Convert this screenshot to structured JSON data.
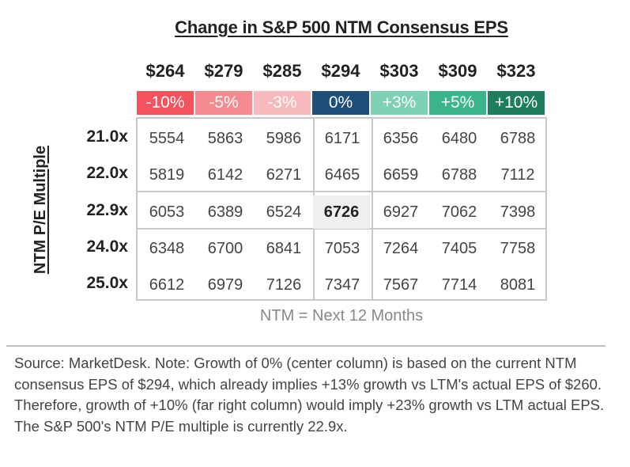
{
  "chart_data": {
    "type": "table",
    "title": "Change in S&P 500 NTM Consensus EPS",
    "ylabel": "NTM P/E Multiple",
    "eps_values": [
      "$264",
      "$279",
      "$285",
      "$294",
      "$303",
      "$309",
      "$323"
    ],
    "growth_labels": [
      "-10%",
      "-5%",
      "-3%",
      "0%",
      "+3%",
      "+5%",
      "+10%"
    ],
    "growth_colors": [
      "#f4525d",
      "#f58b91",
      "#f8b9bc",
      "#1f4e79",
      "#7fd1b4",
      "#3bb58c",
      "#1e7d5c"
    ],
    "pe_multiples": [
      "21.0x",
      "22.0x",
      "22.9x",
      "24.0x",
      "25.0x"
    ],
    "values": [
      [
        5554,
        5863,
        5986,
        6171,
        6356,
        6480,
        6788
      ],
      [
        5819,
        6142,
        6271,
        6465,
        6659,
        6788,
        7112
      ],
      [
        6053,
        6389,
        6524,
        6726,
        6927,
        7062,
        7398
      ],
      [
        6348,
        6700,
        6841,
        7053,
        7264,
        7405,
        7758
      ],
      [
        6612,
        6979,
        7126,
        7347,
        7567,
        7714,
        8081
      ]
    ],
    "highlight": {
      "row": 2,
      "col": 3
    },
    "note": "NTM = Next 12 Months"
  },
  "source": "Source: MarketDesk. Note: Growth of 0% (center column) is based on the current NTM consensus EPS of $294, which already implies +13% growth vs LTM's actual EPS of $260. Therefore, growth of +10% (far right column) would imply +23% growth vs LTM actual EPS. The S&P 500's NTM P/E multiple is currently 22.9x."
}
